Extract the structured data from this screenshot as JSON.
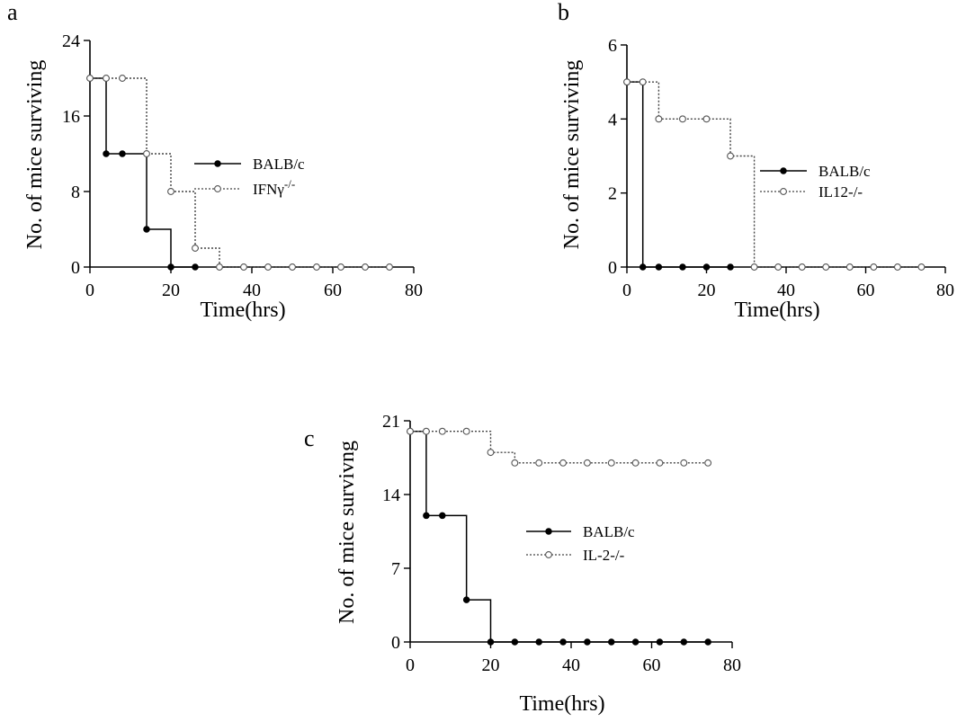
{
  "chart_data": [
    {
      "panel": "a",
      "type": "line",
      "xlabel": "Time(hrs)",
      "ylabel": "No. of mice surviving",
      "xlim": [
        0,
        80
      ],
      "ylim": [
        0,
        24
      ],
      "xticks": [
        0,
        20,
        40,
        60,
        80
      ],
      "yticks": [
        0,
        8,
        16,
        24
      ],
      "legend_position": "right-middle",
      "series": [
        {
          "name": "BALB/c",
          "style": "solid",
          "marker": "filled",
          "x": [
            0,
            4,
            8,
            14,
            20,
            26
          ],
          "y": [
            20,
            12,
            12,
            4,
            0,
            0
          ]
        },
        {
          "name": "IFNγ-/-",
          "legend_main": "IFNγ",
          "legend_sup": "-/-",
          "style": "dotted",
          "marker": "open",
          "x": [
            0,
            4,
            8,
            14,
            20,
            26,
            32,
            38,
            44,
            50,
            56,
            62,
            68,
            74
          ],
          "y": [
            20,
            20,
            20,
            12,
            8,
            2,
            0,
            0,
            0,
            0,
            0,
            0,
            0,
            0
          ]
        }
      ]
    },
    {
      "panel": "b",
      "type": "line",
      "xlabel": "Time(hrs)",
      "ylabel": "No. of mice surviving",
      "xlim": [
        0,
        80
      ],
      "ylim": [
        0,
        6
      ],
      "xticks": [
        0,
        20,
        40,
        60,
        80
      ],
      "yticks": [
        0,
        2,
        4,
        6
      ],
      "legend_position": "right-middle",
      "series": [
        {
          "name": "BALB/c",
          "style": "solid",
          "marker": "filled",
          "x": [
            0,
            4,
            8,
            14,
            20,
            26
          ],
          "y": [
            5,
            0,
            0,
            0,
            0,
            0
          ]
        },
        {
          "name": "IL12-/-",
          "style": "dotted",
          "marker": "open",
          "x": [
            0,
            4,
            8,
            14,
            20,
            26,
            32,
            38,
            44,
            50,
            56,
            62,
            68,
            74
          ],
          "y": [
            5,
            5,
            4,
            4,
            4,
            3,
            0,
            0,
            0,
            0,
            0,
            0,
            0,
            0
          ]
        }
      ]
    },
    {
      "panel": "c",
      "type": "line",
      "xlabel": "Time(hrs)",
      "ylabel": "No. of mice survivng",
      "xlim": [
        0,
        80
      ],
      "ylim": [
        0,
        21
      ],
      "xticks": [
        0,
        20,
        40,
        60,
        80
      ],
      "yticks": [
        0,
        7,
        14,
        21
      ],
      "legend_position": "center",
      "series": [
        {
          "name": "BALB/c",
          "style": "solid",
          "marker": "filled",
          "x": [
            0,
            4,
            8,
            14,
            20,
            26,
            32,
            38,
            44,
            50,
            56,
            62,
            68,
            74
          ],
          "y": [
            20,
            12,
            12,
            4,
            0,
            0,
            0,
            0,
            0,
            0,
            0,
            0,
            0,
            0
          ]
        },
        {
          "name": "IL-2-/-",
          "style": "dotted",
          "marker": "open",
          "x": [
            0,
            4,
            8,
            14,
            20,
            26,
            32,
            38,
            44,
            50,
            56,
            62,
            68,
            74
          ],
          "y": [
            20,
            20,
            20,
            20,
            18,
            17,
            17,
            17,
            17,
            17,
            17,
            17,
            17,
            17
          ]
        }
      ]
    }
  ]
}
